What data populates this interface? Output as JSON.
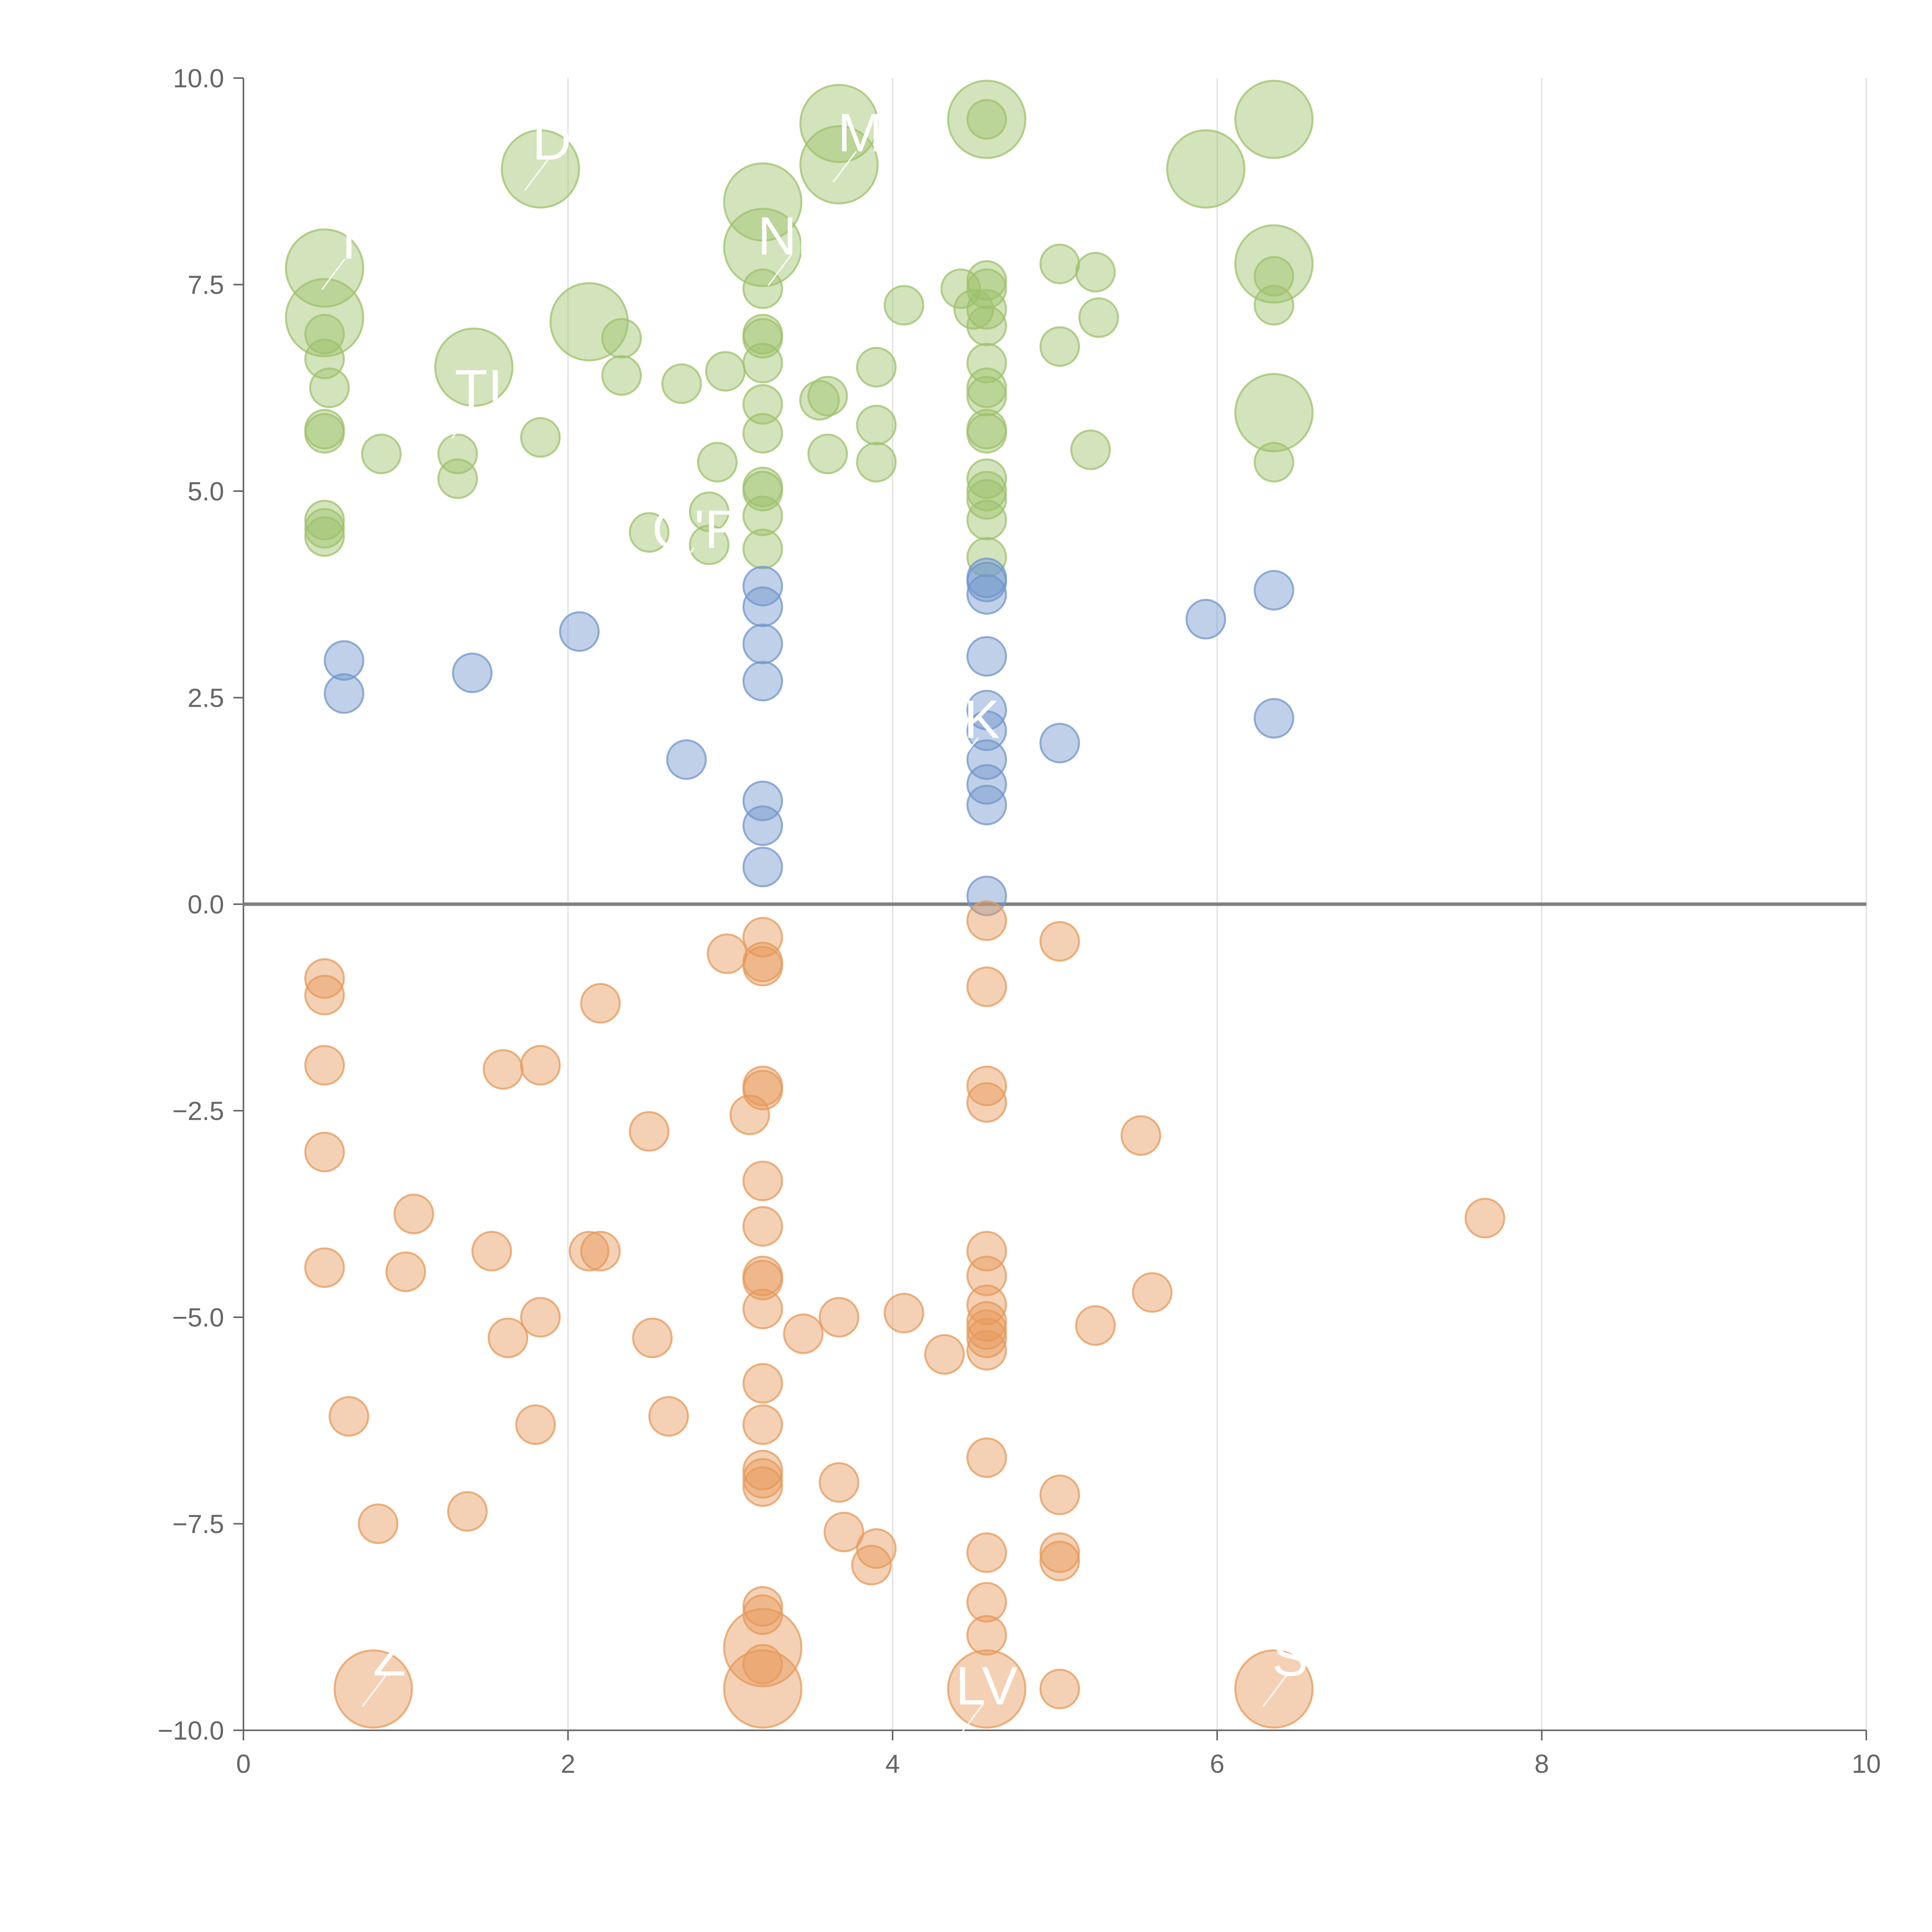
{
  "chart_data": {
    "type": "scatter",
    "title": "",
    "xlabel": "",
    "ylabel": "",
    "xlim": [
      0,
      10
    ],
    "ylim": [
      -10,
      10
    ],
    "grid": "vertical",
    "x_ticks": [
      0,
      2,
      4,
      6,
      8,
      10
    ],
    "x_tick_labels": [
      "0",
      "2",
      "4",
      "6",
      "8",
      "10"
    ],
    "y_ticks": [
      10,
      7.5,
      5,
      2.5,
      0,
      -2.5,
      -5,
      -7.5,
      -10
    ],
    "y_tick_labels": [
      "10.0",
      "7.5",
      "5.0",
      "2.5",
      "0.0",
      "−2.5",
      "−5.0",
      "−7.5",
      "−10.0"
    ],
    "reference_line_y": 0,
    "colors": {
      "green": "#9dc16b",
      "blue": "#7096cc",
      "orange": "#e69a5a",
      "zero_line": "#808080",
      "axis": "#666666",
      "grid": "#dddddd"
    },
    "series": [
      {
        "name": "green",
        "color": "#9dc16b",
        "points": [
          [
            0.5,
            7.7,
            2
          ],
          [
            0.5,
            7.1,
            2
          ],
          [
            0.5,
            6.9,
            1
          ],
          [
            0.5,
            6.6,
            1
          ],
          [
            0.53,
            6.25,
            1
          ],
          [
            0.5,
            5.75,
            1
          ],
          [
            0.5,
            5.7,
            1
          ],
          [
            0.5,
            4.65,
            1
          ],
          [
            0.5,
            4.55,
            1
          ],
          [
            0.5,
            4.45,
            1
          ],
          [
            0.85,
            5.45,
            1
          ],
          [
            1.32,
            5.45,
            1
          ],
          [
            1.32,
            5.15,
            1
          ],
          [
            1.42,
            6.5,
            2
          ],
          [
            1.83,
            5.65,
            1
          ],
          [
            1.83,
            8.9,
            2
          ],
          [
            2.13,
            7.05,
            2
          ],
          [
            2.33,
            6.85,
            1
          ],
          [
            2.33,
            6.4,
            1
          ],
          [
            2.5,
            4.5,
            1
          ],
          [
            2.7,
            6.3,
            1
          ],
          [
            2.87,
            4.75,
            1
          ],
          [
            2.87,
            4.35,
            1
          ],
          [
            2.92,
            5.35,
            1
          ],
          [
            2.97,
            6.45,
            1
          ],
          [
            3.2,
            8.5,
            2
          ],
          [
            3.2,
            7.95,
            2
          ],
          [
            3.2,
            7.45,
            1
          ],
          [
            3.2,
            6.9,
            1
          ],
          [
            3.2,
            6.85,
            1
          ],
          [
            3.2,
            6.55,
            1
          ],
          [
            3.2,
            6.05,
            1
          ],
          [
            3.2,
            5.7,
            1
          ],
          [
            3.2,
            5.05,
            1
          ],
          [
            3.2,
            5.0,
            1
          ],
          [
            3.2,
            4.7,
            1
          ],
          [
            3.2,
            4.3,
            1
          ],
          [
            3.55,
            6.1,
            1
          ],
          [
            3.6,
            6.15,
            1
          ],
          [
            3.6,
            5.45,
            1
          ],
          [
            3.67,
            9.45,
            2
          ],
          [
            3.67,
            8.95,
            2
          ],
          [
            3.9,
            5.8,
            1
          ],
          [
            3.9,
            5.35,
            1
          ],
          [
            3.9,
            6.5,
            1
          ],
          [
            4.07,
            7.25,
            1
          ],
          [
            4.42,
            7.45,
            1
          ],
          [
            4.5,
            7.2,
            1
          ],
          [
            4.58,
            9.5,
            2
          ],
          [
            4.58,
            9.5,
            1
          ],
          [
            4.58,
            7.55,
            1
          ],
          [
            4.58,
            7.45,
            1
          ],
          [
            4.58,
            7.2,
            1
          ],
          [
            4.58,
            7.0,
            1
          ],
          [
            4.58,
            6.55,
            1
          ],
          [
            4.58,
            6.25,
            1
          ],
          [
            4.58,
            6.15,
            1
          ],
          [
            4.58,
            5.75,
            1
          ],
          [
            4.58,
            5.7,
            1
          ],
          [
            4.58,
            5.15,
            1
          ],
          [
            4.58,
            5.0,
            1
          ],
          [
            4.58,
            4.9,
            1
          ],
          [
            4.58,
            4.65,
            1
          ],
          [
            4.58,
            4.2,
            1
          ],
          [
            5.03,
            7.75,
            1
          ],
          [
            5.03,
            6.75,
            1
          ],
          [
            5.25,
            7.65,
            1
          ],
          [
            5.27,
            7.1,
            1
          ],
          [
            5.22,
            5.5,
            1
          ],
          [
            5.93,
            8.9,
            2
          ],
          [
            6.35,
            9.5,
            2
          ],
          [
            6.35,
            7.75,
            2
          ],
          [
            6.35,
            7.6,
            1
          ],
          [
            6.35,
            7.25,
            1
          ],
          [
            6.35,
            5.95,
            2
          ],
          [
            6.35,
            5.35,
            1
          ]
        ]
      },
      {
        "name": "blue",
        "color": "#7096cc",
        "points": [
          [
            0.62,
            2.95,
            1
          ],
          [
            0.62,
            2.55,
            1
          ],
          [
            1.41,
            2.8,
            1
          ],
          [
            2.07,
            3.3,
            1
          ],
          [
            2.73,
            1.75,
            1
          ],
          [
            3.2,
            3.85,
            1
          ],
          [
            3.2,
            3.6,
            1
          ],
          [
            3.2,
            3.15,
            1
          ],
          [
            3.2,
            2.7,
            1
          ],
          [
            3.2,
            1.25,
            1
          ],
          [
            3.2,
            0.95,
            1
          ],
          [
            3.2,
            0.45,
            1
          ],
          [
            4.58,
            3.95,
            1
          ],
          [
            4.58,
            3.9,
            1
          ],
          [
            4.58,
            3.75,
            1
          ],
          [
            4.58,
            3.0,
            1
          ],
          [
            4.58,
            2.35,
            1
          ],
          [
            4.58,
            2.1,
            1
          ],
          [
            4.58,
            1.75,
            1
          ],
          [
            4.58,
            1.45,
            1
          ],
          [
            4.58,
            1.2,
            1
          ],
          [
            4.58,
            0.1,
            1
          ],
          [
            5.03,
            1.95,
            1
          ],
          [
            5.93,
            3.45,
            1
          ],
          [
            6.35,
            3.8,
            1
          ],
          [
            6.35,
            2.25,
            1
          ]
        ]
      },
      {
        "name": "orange",
        "color": "#e69a5a",
        "points": [
          [
            0.5,
            -0.9,
            1
          ],
          [
            0.5,
            -1.1,
            1
          ],
          [
            0.5,
            -1.95,
            1
          ],
          [
            0.5,
            -3.0,
            1
          ],
          [
            0.5,
            -4.4,
            1
          ],
          [
            0.65,
            -6.2,
            1
          ],
          [
            0.8,
            -9.5,
            2
          ],
          [
            0.83,
            -7.5,
            1
          ],
          [
            1.0,
            -4.45,
            1
          ],
          [
            1.05,
            -3.75,
            1
          ],
          [
            1.38,
            -7.35,
            1
          ],
          [
            1.53,
            -4.2,
            1
          ],
          [
            1.6,
            -2.0,
            1
          ],
          [
            1.63,
            -5.25,
            1
          ],
          [
            1.8,
            -6.3,
            1
          ],
          [
            1.83,
            -1.95,
            1
          ],
          [
            1.83,
            -5.0,
            1
          ],
          [
            2.13,
            -4.2,
            1
          ],
          [
            2.2,
            -4.2,
            1
          ],
          [
            2.2,
            -1.2,
            1
          ],
          [
            2.5,
            -2.75,
            1
          ],
          [
            2.52,
            -5.25,
            1
          ],
          [
            2.62,
            -6.2,
            1
          ],
          [
            2.98,
            -0.6,
            1
          ],
          [
            3.12,
            -2.55,
            1
          ],
          [
            3.2,
            -0.4,
            1
          ],
          [
            3.2,
            -0.7,
            1
          ],
          [
            3.2,
            -0.75,
            1
          ],
          [
            3.2,
            -2.2,
            1
          ],
          [
            3.2,
            -2.25,
            1
          ],
          [
            3.2,
            -3.35,
            1
          ],
          [
            3.2,
            -3.9,
            1
          ],
          [
            3.2,
            -4.5,
            1
          ],
          [
            3.2,
            -4.55,
            1
          ],
          [
            3.2,
            -4.9,
            1
          ],
          [
            3.2,
            -5.8,
            1
          ],
          [
            3.2,
            -6.3,
            1
          ],
          [
            3.2,
            -6.85,
            1
          ],
          [
            3.2,
            -6.95,
            1
          ],
          [
            3.2,
            -7.05,
            1
          ],
          [
            3.2,
            -8.5,
            1
          ],
          [
            3.2,
            -8.6,
            1
          ],
          [
            3.2,
            -9.0,
            2
          ],
          [
            3.2,
            -9.2,
            1
          ],
          [
            3.2,
            -9.5,
            2
          ],
          [
            3.45,
            -5.2,
            1
          ],
          [
            3.67,
            -5.0,
            1
          ],
          [
            3.67,
            -7.0,
            1
          ],
          [
            3.7,
            -7.6,
            1
          ],
          [
            3.87,
            -8.0,
            1
          ],
          [
            3.9,
            -7.8,
            1
          ],
          [
            4.07,
            -4.95,
            1
          ],
          [
            4.32,
            -5.45,
            1
          ],
          [
            4.58,
            -0.2,
            1
          ],
          [
            4.58,
            -1.0,
            1
          ],
          [
            4.58,
            -2.2,
            1
          ],
          [
            4.58,
            -2.4,
            1
          ],
          [
            4.58,
            -4.2,
            1
          ],
          [
            4.58,
            -4.5,
            1
          ],
          [
            4.58,
            -4.85,
            1
          ],
          [
            4.58,
            -5.05,
            1
          ],
          [
            4.58,
            -5.15,
            1
          ],
          [
            4.58,
            -5.25,
            1
          ],
          [
            4.58,
            -5.4,
            1
          ],
          [
            4.58,
            -6.7,
            1
          ],
          [
            4.58,
            -7.85,
            1
          ],
          [
            4.58,
            -8.45,
            1
          ],
          [
            4.58,
            -8.85,
            1
          ],
          [
            4.58,
            -9.5,
            2
          ],
          [
            5.03,
            -0.45,
            1
          ],
          [
            5.03,
            -7.15,
            1
          ],
          [
            5.03,
            -7.85,
            1
          ],
          [
            5.03,
            -7.95,
            1
          ],
          [
            5.03,
            -9.5,
            1
          ],
          [
            5.25,
            -5.1,
            1
          ],
          [
            5.53,
            -2.8,
            1
          ],
          [
            5.6,
            -4.7,
            1
          ],
          [
            6.35,
            -9.5,
            2
          ],
          [
            7.65,
            -3.8,
            1
          ]
        ]
      }
    ],
    "annotations": [
      {
        "text": "D",
        "x": 1.9,
        "y": 9.2
      },
      {
        "text": "M",
        "x": 3.8,
        "y": 9.3
      },
      {
        "text": "NK",
        "x": 3.4,
        "y": 8.05
      },
      {
        "text": "T",
        "x": 0.65,
        "y": 8.0
      },
      {
        "text": "TI",
        "x": 1.45,
        "y": 6.2
      },
      {
        "text": "O'R",
        "x": 2.8,
        "y": 4.5
      },
      {
        "text": "K",
        "x": 4.55,
        "y": 2.2
      },
      {
        "text": "Z",
        "x": 0.9,
        "y": -9.15
      },
      {
        "text": "LV",
        "x": 4.58,
        "y": -9.5
      },
      {
        "text": "S",
        "x": 6.45,
        "y": -9.15
      }
    ]
  }
}
